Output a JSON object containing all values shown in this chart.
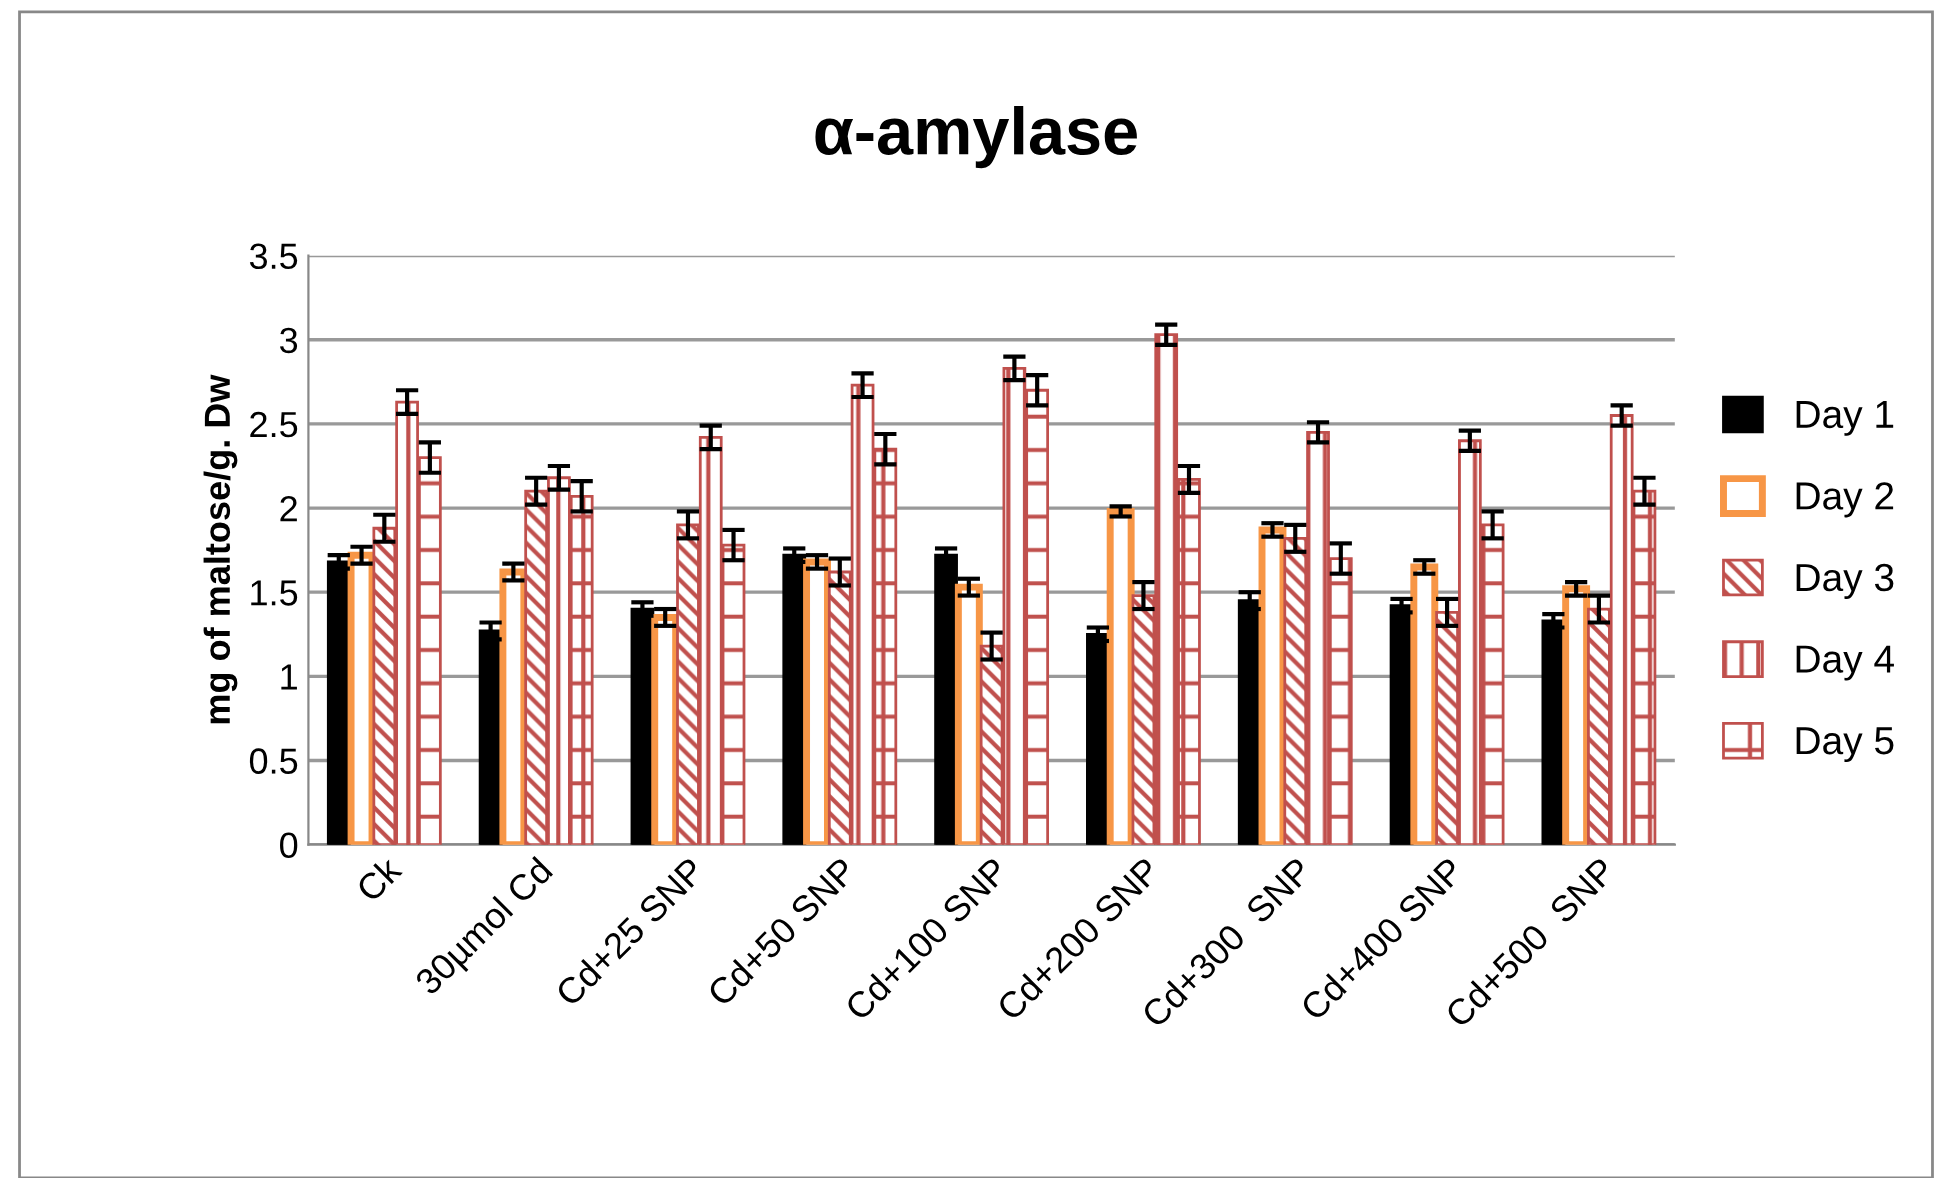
{
  "chart_data": {
    "type": "bar",
    "title": "α-amylase",
    "ylabel": "mg of maltose/g. Dw",
    "categories": [
      "Ck",
      "30µmol Cd",
      "Cd+25 SNP",
      "Cd+50 SNP",
      "Cd+100 SNP",
      "Cd+200 SNP",
      "Cd+300  SNP",
      "Cd+400 SNP",
      "Cd+500  SNP"
    ],
    "series": [
      {
        "name": "Day 1",
        "color": "#000000",
        "values": [
          1.68,
          1.27,
          1.4,
          1.72,
          1.72,
          1.25,
          1.45,
          1.42,
          1.33
        ],
        "errors": [
          0.04,
          0.05,
          0.04,
          0.04,
          0.04,
          0.04,
          0.05,
          0.04,
          0.04
        ]
      },
      {
        "name": "Day 2",
        "color": "#f79646",
        "values": [
          1.72,
          1.62,
          1.35,
          1.68,
          1.53,
          1.98,
          1.87,
          1.65,
          1.52
        ],
        "errors": [
          0.05,
          0.05,
          0.05,
          0.04,
          0.05,
          0.03,
          0.04,
          0.04,
          0.04
        ]
      },
      {
        "name": "Day 3",
        "color": "#c0504d",
        "values": [
          1.88,
          2.1,
          1.9,
          1.62,
          1.18,
          1.48,
          1.82,
          1.38,
          1.4
        ],
        "errors": [
          0.08,
          0.08,
          0.08,
          0.08,
          0.08,
          0.08,
          0.08,
          0.08,
          0.08
        ]
      },
      {
        "name": "Day 4",
        "color": "#c0504d",
        "values": [
          2.63,
          2.18,
          2.42,
          2.73,
          2.83,
          3.03,
          2.45,
          2.4,
          2.55
        ],
        "errors": [
          0.07,
          0.07,
          0.07,
          0.07,
          0.07,
          0.06,
          0.06,
          0.06,
          0.06
        ]
      },
      {
        "name": "Day 5",
        "color": "#c0504d",
        "values": [
          2.3,
          2.07,
          1.78,
          2.35,
          2.7,
          2.17,
          1.7,
          1.9,
          2.1
        ],
        "errors": [
          0.09,
          0.09,
          0.09,
          0.09,
          0.09,
          0.08,
          0.09,
          0.08,
          0.08
        ]
      }
    ],
    "ylim": [
      0,
      3.5
    ],
    "yticks": [
      0,
      0.5,
      1,
      1.5,
      2,
      2.5,
      3,
      3.5
    ],
    "grid": "y",
    "legend": "right"
  }
}
